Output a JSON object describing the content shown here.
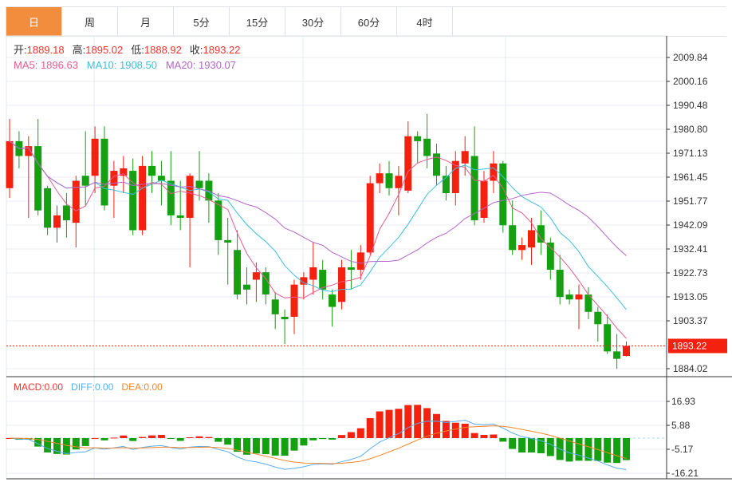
{
  "tabs": [
    "日",
    "周",
    "月",
    "5分",
    "15分",
    "30分",
    "60分",
    "4时"
  ],
  "active_tab": 0,
  "ohlc_info": {
    "open_label": "开:",
    "open": "1889.18",
    "high_label": "高:",
    "high": "1895.02",
    "low_label": "低:",
    "low": "1888.92",
    "close_label": "收:",
    "close": "1893.22"
  },
  "ma_info": {
    "ma5": "MA5: 1896.63",
    "ma10": "MA10: 1908.50",
    "ma20": "MA20: 1930.07"
  },
  "macd_info": {
    "macd": "MACD:0.00",
    "diff": "DIFF:0.00",
    "dea": "DEA:0.00"
  },
  "colors": {
    "up": "#f5210f",
    "down": "#14a010",
    "ma5": "#e95b8f",
    "ma10": "#3bbfdd",
    "ma20": "#b565c9",
    "diff": "#5aaef0",
    "dea": "#f5862a",
    "accent": "#f28d3e"
  },
  "chart_data": {
    "type": "candlestick",
    "price_axis": {
      "ticks": [
        "2009.84",
        "2000.16",
        "1990.48",
        "1980.80",
        "1971.13",
        "1961.45",
        "1951.77",
        "1942.09",
        "1932.41",
        "1922.73",
        "1913.05",
        "1903.37",
        "1884.02"
      ],
      "range": [
        1884.02,
        2009.84
      ]
    },
    "current_price": "1893.22",
    "macd_axis": {
      "ticks": [
        "16.93",
        "5.88",
        "-5.17",
        "-16.21"
      ],
      "range": [
        -16.21,
        16.93
      ]
    },
    "candles": [
      [
        1957,
        1976,
        1985,
        1953
      ],
      [
        1976,
        1970,
        1980,
        1965
      ],
      [
        1970,
        1974,
        1978,
        1945
      ],
      [
        1974,
        1948,
        1985,
        1946
      ],
      [
        1957,
        1941,
        1958,
        1938
      ],
      [
        1941,
        1946,
        1950,
        1935
      ],
      [
        1950,
        1944,
        1955,
        1937
      ],
      [
        1943,
        1960,
        1962,
        1933
      ],
      [
        1962,
        1958,
        1980,
        1950
      ],
      [
        1962,
        1977,
        1982,
        1955
      ],
      [
        1977,
        1950,
        1982,
        1948
      ],
      [
        1958,
        1964,
        1968,
        1945
      ],
      [
        1962,
        1965,
        1970,
        1955
      ],
      [
        1964,
        1940,
        1969,
        1938
      ],
      [
        1940,
        1966,
        1970,
        1938
      ],
      [
        1966,
        1962,
        1972,
        1955
      ],
      [
        1962,
        1960,
        1968,
        1950
      ],
      [
        1960,
        1946,
        1972,
        1942
      ],
      [
        1946,
        1945,
        1960,
        1940
      ],
      [
        1945,
        1962,
        1963,
        1925
      ],
      [
        1960,
        1957,
        1972,
        1952
      ],
      [
        1960,
        1952,
        1963,
        1943
      ],
      [
        1952,
        1936,
        1955,
        1930
      ],
      [
        1936,
        1935,
        1945,
        1918
      ],
      [
        1932,
        1914,
        1940,
        1912
      ],
      [
        1918,
        1916,
        1925,
        1910
      ],
      [
        1920,
        1923,
        1927,
        1911
      ],
      [
        1923,
        1914,
        1925,
        1910
      ],
      [
        1912,
        1906,
        1915,
        1900
      ],
      [
        1905,
        1904,
        1908,
        1894
      ],
      [
        1905,
        1918,
        1920,
        1898
      ],
      [
        1918,
        1921,
        1923,
        1912
      ],
      [
        1920,
        1925,
        1935,
        1914
      ],
      [
        1924,
        1916,
        1928,
        1912
      ],
      [
        1914,
        1909,
        1916,
        1901
      ],
      [
        1911,
        1925,
        1928,
        1908
      ],
      [
        1925,
        1924,
        1932,
        1916
      ],
      [
        1924,
        1931,
        1934,
        1920
      ],
      [
        1931,
        1959,
        1962,
        1930
      ],
      [
        1959,
        1963,
        1967,
        1955
      ],
      [
        1963,
        1957,
        1968,
        1954
      ],
      [
        1957,
        1962,
        1966,
        1946
      ],
      [
        1956,
        1978,
        1984,
        1955
      ],
      [
        1978,
        1976,
        1980,
        1967
      ],
      [
        1977,
        1970,
        1987,
        1965
      ],
      [
        1971,
        1962,
        1975,
        1958
      ],
      [
        1962,
        1955,
        1966,
        1952
      ],
      [
        1955,
        1968,
        1972,
        1950
      ],
      [
        1967,
        1972,
        1978,
        1962
      ],
      [
        1970,
        1944,
        1982,
        1942
      ],
      [
        1945,
        1960,
        1964,
        1943
      ],
      [
        1960,
        1967,
        1972,
        1955
      ],
      [
        1967,
        1942,
        1968,
        1939
      ],
      [
        1942,
        1932,
        1952,
        1930
      ],
      [
        1932,
        1934,
        1937,
        1928
      ],
      [
        1933,
        1940,
        1945,
        1926
      ],
      [
        1942,
        1935,
        1948,
        1930
      ],
      [
        1935,
        1924,
        1937,
        1920
      ],
      [
        1924,
        1913,
        1930,
        1910
      ],
      [
        1914,
        1912,
        1916,
        1910
      ],
      [
        1912,
        1914,
        1918,
        1900
      ],
      [
        1914,
        1907,
        1917,
        1904
      ],
      [
        1907,
        1902,
        1909,
        1895
      ],
      [
        1902,
        1891,
        1906,
        1890
      ],
      [
        1891,
        1888,
        1898,
        1884
      ],
      [
        1889.18,
        1893.22,
        1895.02,
        1888.92
      ]
    ]
  }
}
